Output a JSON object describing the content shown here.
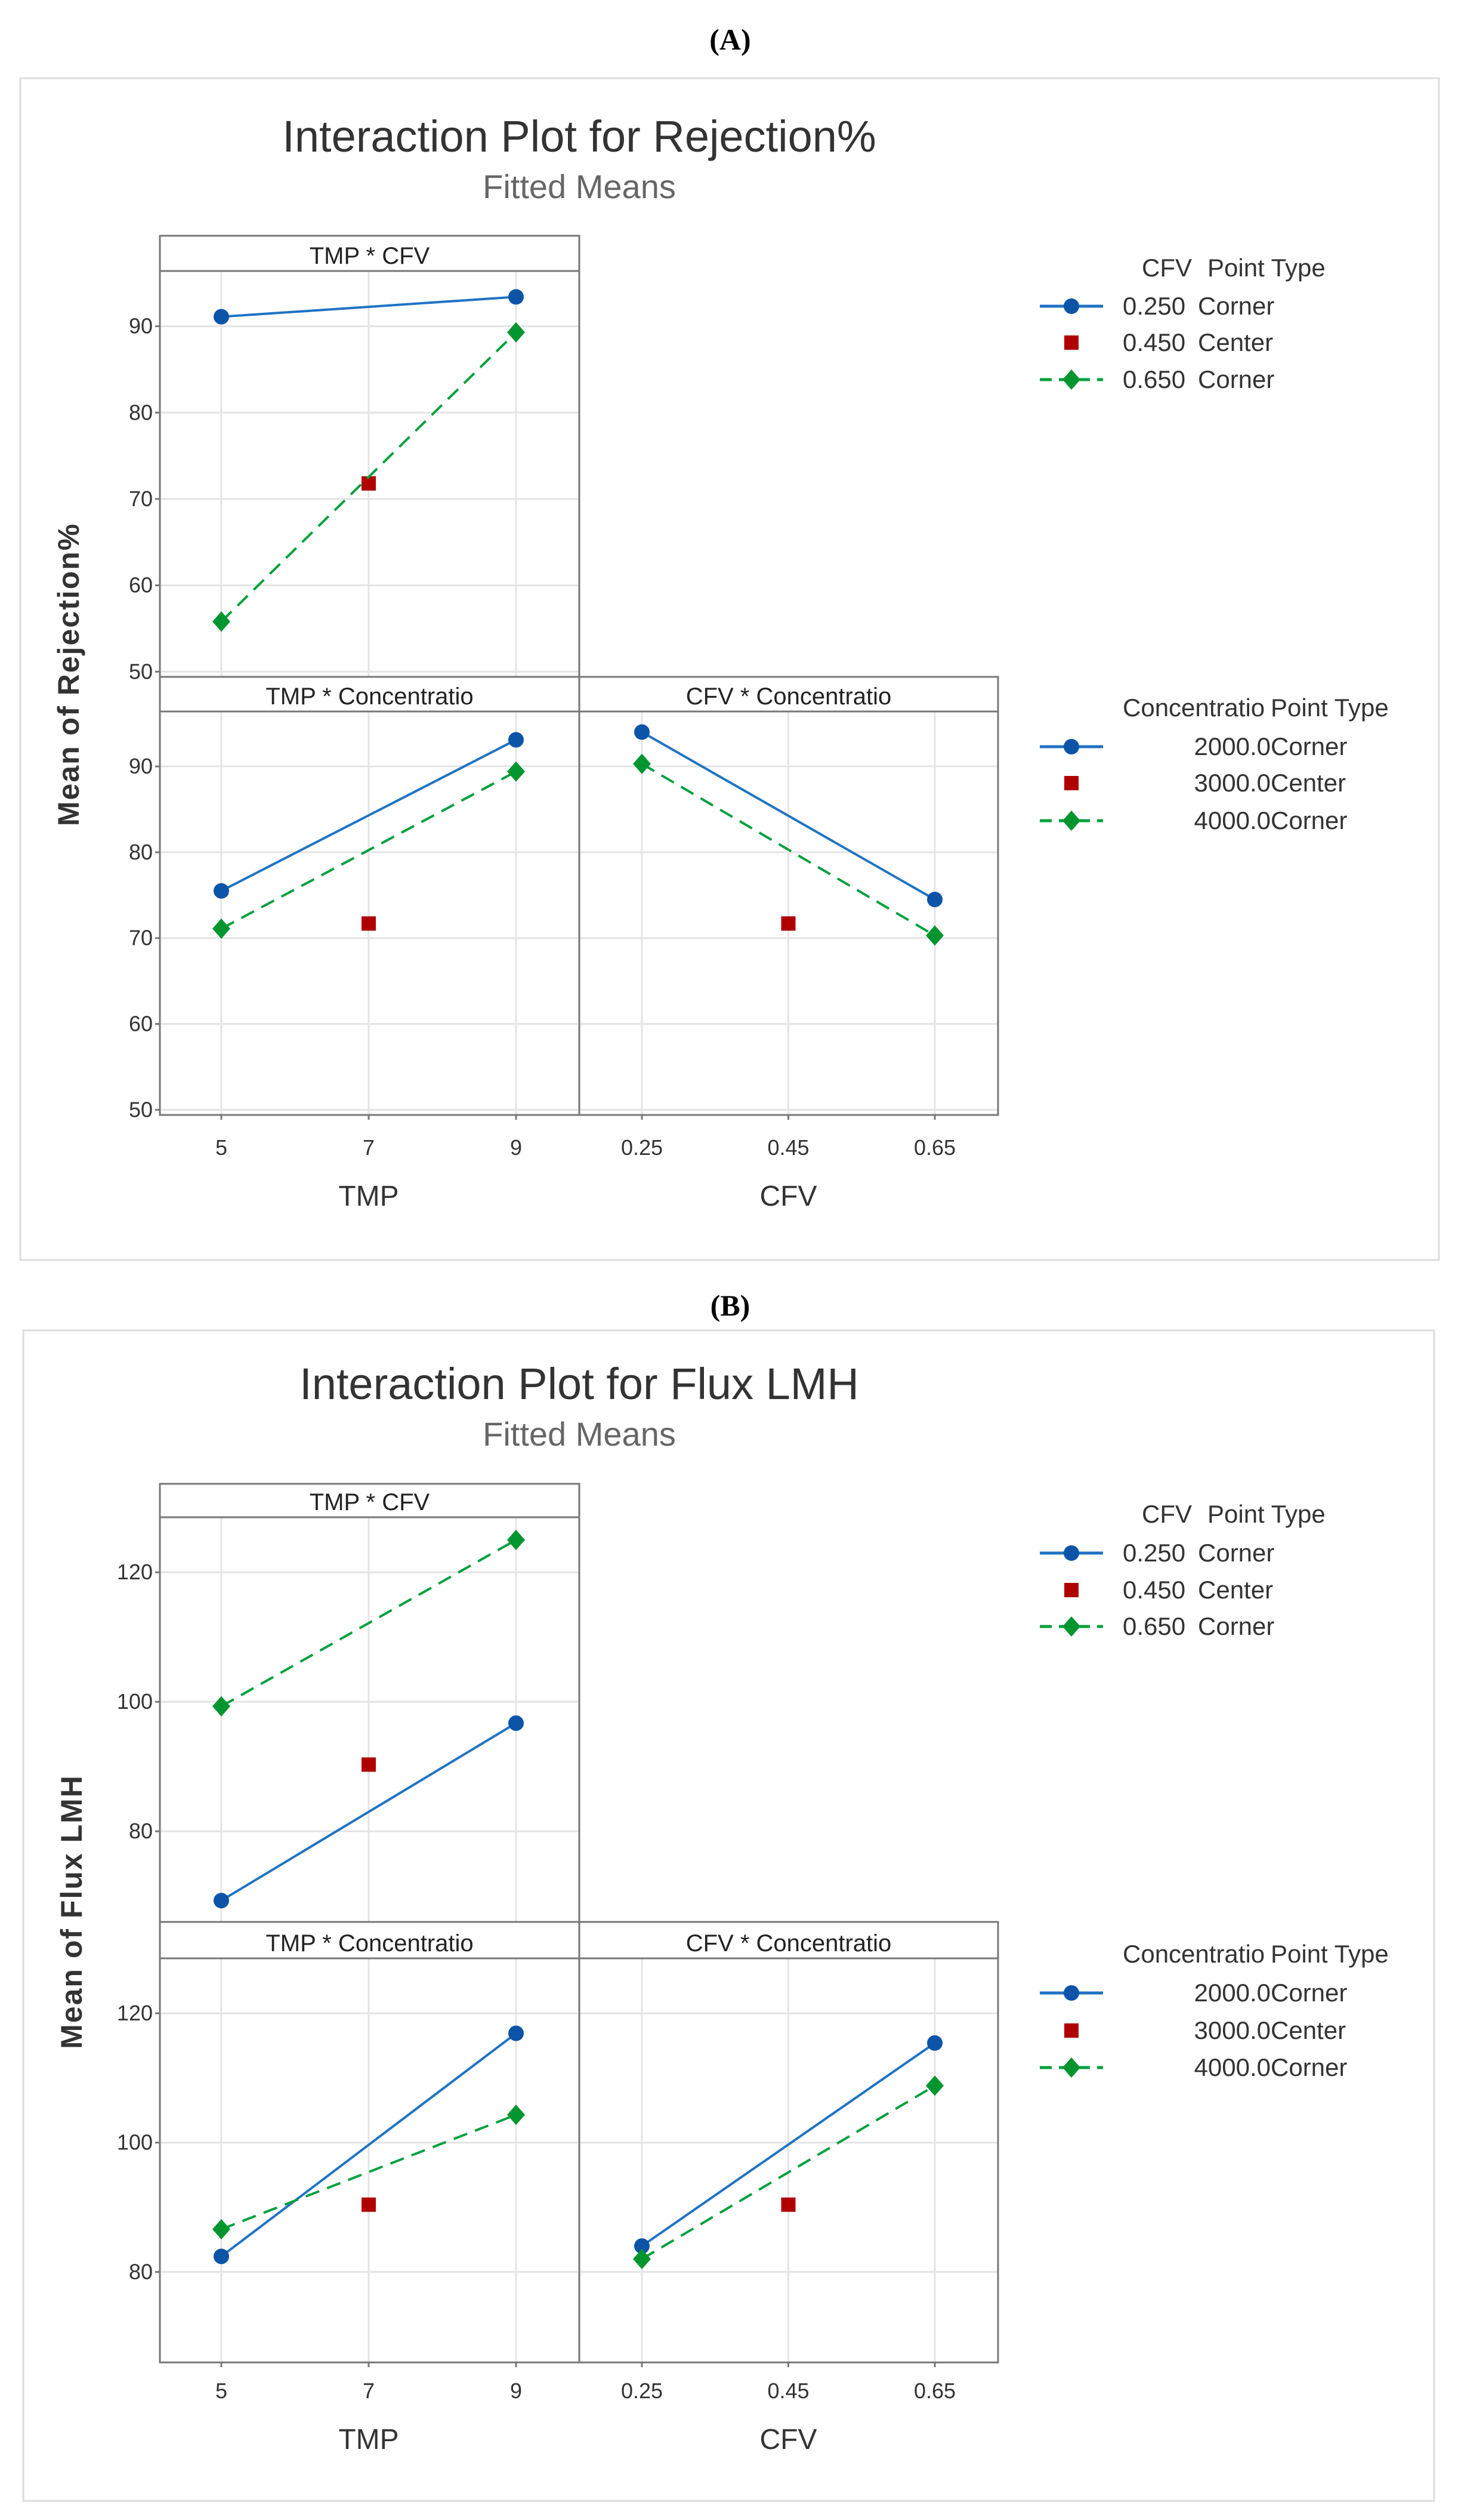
{
  "colors": {
    "blue_line": "#1f73c4",
    "blue_marker": "#0b54a8",
    "green": "#00a03c",
    "green_marker": "#00952e",
    "red": "#b00000",
    "frame": "#777777",
    "grid": "#e4e4e4"
  },
  "chart_data": [
    {
      "type": "line",
      "figure_label": "(A)",
      "title": "Interaction Plot for Rejection%",
      "subtitle": "Fitted Means",
      "ylabel": "Mean of Rejection%",
      "ylim": [
        49.4,
        96.4
      ],
      "yticks": [
        50,
        60,
        70,
        80,
        90
      ],
      "xaxes": [
        {
          "label": "TMP",
          "ticks": [
            5,
            7,
            9
          ],
          "ticklabels": [
            "5",
            "7",
            "9"
          ],
          "lim": [
            5,
            9
          ]
        },
        {
          "label": "CFV",
          "ticks": [
            0.25,
            0.45,
            0.65
          ],
          "ticklabels": [
            "0.25",
            "0.45",
            "0.65"
          ],
          "lim": [
            0.25,
            0.65
          ]
        }
      ],
      "panels": [
        {
          "title": "TMP * CFV",
          "row": 0,
          "col": 0,
          "xaxis": 0,
          "legend": 0,
          "series": [
            {
              "name": "0.250",
              "style": "corner-solid",
              "points": [
                [
                  5,
                  91.1
                ],
                [
                  9,
                  93.4
                ]
              ]
            },
            {
              "name": "0.450",
              "style": "center",
              "points": [
                [
                  7,
                  71.8
                ]
              ]
            },
            {
              "name": "0.650",
              "style": "corner-dashed",
              "points": [
                [
                  5,
                  55.8
                ],
                [
                  9,
                  89.3
                ]
              ]
            }
          ]
        },
        {
          "title": "TMP * Concentratio",
          "row": 1,
          "col": 0,
          "xaxis": 0,
          "legend": 1,
          "series": [
            {
              "name": "2000.0",
              "style": "corner-solid",
              "points": [
                [
                  5,
                  75.5
                ],
                [
                  9,
                  93.1
                ]
              ]
            },
            {
              "name": "3000.0",
              "style": "center",
              "points": [
                [
                  7,
                  71.7
                ]
              ]
            },
            {
              "name": "4000.0",
              "style": "corner-dashed",
              "points": [
                [
                  5,
                  71.1
                ],
                [
                  9,
                  89.4
                ]
              ]
            }
          ]
        },
        {
          "title": "CFV * Concentratio",
          "row": 1,
          "col": 1,
          "xaxis": 1,
          "legend": 1,
          "series": [
            {
              "name": "2000.0",
              "style": "corner-solid",
              "points": [
                [
                  0.25,
                  94.0
                ],
                [
                  0.65,
                  74.5
                ]
              ]
            },
            {
              "name": "3000.0",
              "style": "center",
              "points": [
                [
                  0.45,
                  71.7
                ]
              ]
            },
            {
              "name": "4000.0",
              "style": "corner-dashed",
              "points": [
                [
                  0.25,
                  90.3
                ],
                [
                  0.65,
                  70.3
                ]
              ]
            }
          ]
        }
      ],
      "legends": [
        {
          "var": "CFV",
          "type_header": "Point Type",
          "entries": [
            {
              "value": "0.250",
              "type": "Corner",
              "style": "corner-solid"
            },
            {
              "value": "0.450",
              "type": "Center",
              "style": "center"
            },
            {
              "value": "0.650",
              "type": "Corner",
              "style": "corner-dashed"
            }
          ]
        },
        {
          "var": "Concentratio",
          "type_header": "Point Type",
          "entries": [
            {
              "value": "2000.0",
              "type": "Corner",
              "style": "corner-solid"
            },
            {
              "value": "3000.0",
              "type": "Center",
              "style": "center"
            },
            {
              "value": "4000.0",
              "type": "Corner",
              "style": "corner-dashed"
            }
          ]
        }
      ]
    },
    {
      "type": "line",
      "figure_label": "(B)",
      "title": "Interaction Plot for Flux LMH",
      "subtitle": "Fitted Means",
      "ylabel": "Mean of Flux LMH",
      "ylim": [
        66.0,
        128.5
      ],
      "yticks": [
        80,
        100,
        120
      ],
      "xaxes": [
        {
          "label": "TMP",
          "ticks": [
            5,
            7,
            9
          ],
          "ticklabels": [
            "5",
            "7",
            "9"
          ],
          "lim": [
            5,
            9
          ]
        },
        {
          "label": "CFV",
          "ticks": [
            0.25,
            0.45,
            0.65
          ],
          "ticklabels": [
            "0.25",
            "0.45",
            "0.65"
          ],
          "lim": [
            0.25,
            0.65
          ]
        }
      ],
      "panels": [
        {
          "title": "TMP * CFV",
          "row": 0,
          "col": 0,
          "xaxis": 0,
          "legend": 0,
          "series": [
            {
              "name": "0.250",
              "style": "corner-solid",
              "points": [
                [
                  5,
                  69.3
                ],
                [
                  9,
                  96.7
                ]
              ]
            },
            {
              "name": "0.450",
              "style": "center",
              "points": [
                [
                  7,
                  90.3
                ]
              ]
            },
            {
              "name": "0.650",
              "style": "corner-dashed",
              "points": [
                [
                  5,
                  99.3
                ],
                [
                  9,
                  125.0
                ]
              ]
            }
          ]
        },
        {
          "title": "TMP * Concentratio",
          "row": 1,
          "col": 0,
          "xaxis": 0,
          "legend": 1,
          "series": [
            {
              "name": "2000.0",
              "style": "corner-solid",
              "points": [
                [
                  5,
                  82.4
                ],
                [
                  9,
                  116.9
                ]
              ]
            },
            {
              "name": "3000.0",
              "style": "center",
              "points": [
                [
                  7,
                  90.4
                ]
              ]
            },
            {
              "name": "4000.0",
              "style": "corner-dashed",
              "points": [
                [
                  5,
                  86.6
                ],
                [
                  9,
                  104.3
                ]
              ]
            }
          ]
        },
        {
          "title": "CFV * Concentratio",
          "row": 1,
          "col": 1,
          "xaxis": 1,
          "legend": 1,
          "series": [
            {
              "name": "2000.0",
              "style": "corner-solid",
              "points": [
                [
                  0.25,
                  84.0
                ],
                [
                  0.65,
                  115.4
                ]
              ]
            },
            {
              "name": "3000.0",
              "style": "center",
              "points": [
                [
                  0.45,
                  90.4
                ]
              ]
            },
            {
              "name": "4000.0",
              "style": "corner-dashed",
              "points": [
                [
                  0.25,
                  82.0
                ],
                [
                  0.65,
                  108.8
                ]
              ]
            }
          ]
        }
      ],
      "legends": [
        {
          "var": "CFV",
          "type_header": "Point Type",
          "entries": [
            {
              "value": "0.250",
              "type": "Corner",
              "style": "corner-solid"
            },
            {
              "value": "0.450",
              "type": "Center",
              "style": "center"
            },
            {
              "value": "0.650",
              "type": "Corner",
              "style": "corner-dashed"
            }
          ]
        },
        {
          "var": "Concentratio",
          "type_header": "Point Type",
          "entries": [
            {
              "value": "2000.0",
              "type": "Corner",
              "style": "corner-solid"
            },
            {
              "value": "3000.0",
              "type": "Center",
              "style": "center"
            },
            {
              "value": "4000.0",
              "type": "Corner",
              "style": "corner-dashed"
            }
          ]
        }
      ]
    }
  ]
}
